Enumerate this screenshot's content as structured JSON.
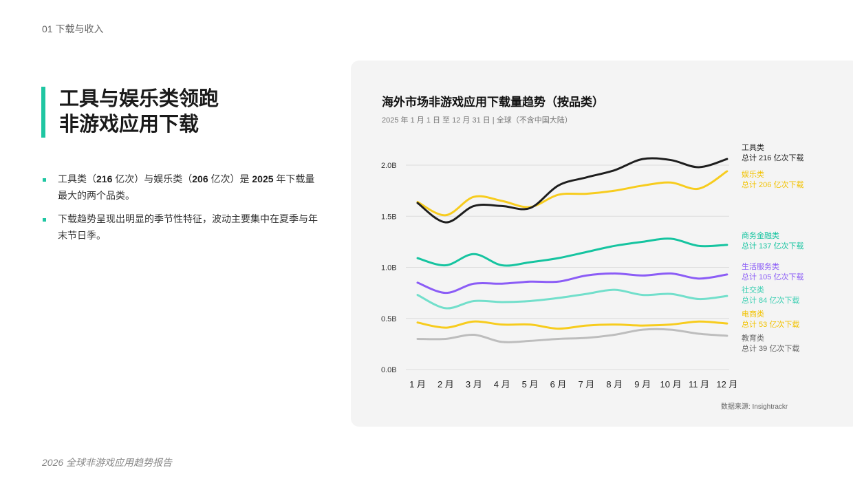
{
  "section": "01  下载与收入",
  "headline": [
    "工具与娱乐类领跑",
    "非游戏应用下载"
  ],
  "bullets": [
    [
      {
        "t": "工具类（",
        "b": false
      },
      {
        "t": "216",
        "b": true
      },
      {
        "t": " 亿次）与娱乐类（",
        "b": false
      },
      {
        "t": "206",
        "b": true
      },
      {
        "t": " 亿次）是 ",
        "b": false
      },
      {
        "t": "2025",
        "b": true
      },
      {
        "t": " 年下载量最大的两个品类。",
        "b": false
      }
    ],
    [
      {
        "t": "下载趋势呈现出明显的季节性特征，波动主要集中在夏季与年末节日季。",
        "b": false
      }
    ]
  ],
  "footer": "2026 全球非游戏应用趋势报告",
  "source": "数据来源: Insightrackr",
  "chart_data": {
    "type": "line",
    "title": "海外市场非游戏应用下载量趋势（按品类）",
    "subtitle": "2025 年 1 月 1 日 至 12 月 31 日 | 全球（不含中国大陆）",
    "categories": [
      "1 月",
      "2 月",
      "3 月",
      "4 月",
      "5 月",
      "6 月",
      "7 月",
      "8 月",
      "9 月",
      "10 月",
      "11 月",
      "12 月"
    ],
    "yticks": [
      "0.0B",
      "0.5B",
      "1.0B",
      "1.5B",
      "2.0B"
    ],
    "ylim": [
      0,
      2.0
    ],
    "grid": true,
    "legend": "right, labels at line ends",
    "series": [
      {
        "name": "工具类",
        "total": "总计 216 亿次下载",
        "color": "#1e1e1e",
        "name_color": "#1e1e1e",
        "values": [
          1.63,
          1.44,
          1.6,
          1.6,
          1.58,
          1.8,
          1.88,
          1.95,
          2.06,
          2.05,
          1.98,
          2.06
        ]
      },
      {
        "name": "娱乐类",
        "total": "总计 206 亿次下载",
        "color": "#f7cc1e",
        "name_color": "#f2c200",
        "values": [
          1.64,
          1.51,
          1.69,
          1.65,
          1.59,
          1.71,
          1.72,
          1.75,
          1.8,
          1.83,
          1.77,
          1.94
        ]
      },
      {
        "name": "商务金融类",
        "total": "总计 137 亿次下载",
        "color": "#16c4a0",
        "name_color": "#16c4a0",
        "values": [
          1.09,
          1.02,
          1.13,
          1.02,
          1.05,
          1.09,
          1.15,
          1.21,
          1.25,
          1.28,
          1.21,
          1.22
        ]
      },
      {
        "name": "生活服务类",
        "total": "总计 105 亿次下载",
        "color": "#8b5cf6",
        "name_color": "#8b5cf6",
        "values": [
          0.85,
          0.75,
          0.84,
          0.84,
          0.86,
          0.86,
          0.92,
          0.94,
          0.92,
          0.94,
          0.89,
          0.93
        ]
      },
      {
        "name": "社交类",
        "total": "总计 84 亿次下载",
        "color": "#72dfcb",
        "name_color": "#3ccfb3",
        "values": [
          0.73,
          0.6,
          0.67,
          0.66,
          0.67,
          0.7,
          0.74,
          0.78,
          0.73,
          0.74,
          0.69,
          0.72
        ]
      },
      {
        "name": "电商类",
        "total": "总计 53 亿次下载",
        "color": "#f7cc1e",
        "name_color": "#f2c200",
        "values": [
          0.46,
          0.41,
          0.47,
          0.44,
          0.44,
          0.4,
          0.43,
          0.44,
          0.43,
          0.44,
          0.47,
          0.45
        ]
      },
      {
        "name": "教育类",
        "total": "总计 39 亿次下载",
        "color": "#bdbdbd",
        "name_color": "#666666",
        "values": [
          0.3,
          0.3,
          0.34,
          0.27,
          0.28,
          0.3,
          0.31,
          0.34,
          0.39,
          0.39,
          0.35,
          0.33
        ]
      }
    ]
  }
}
